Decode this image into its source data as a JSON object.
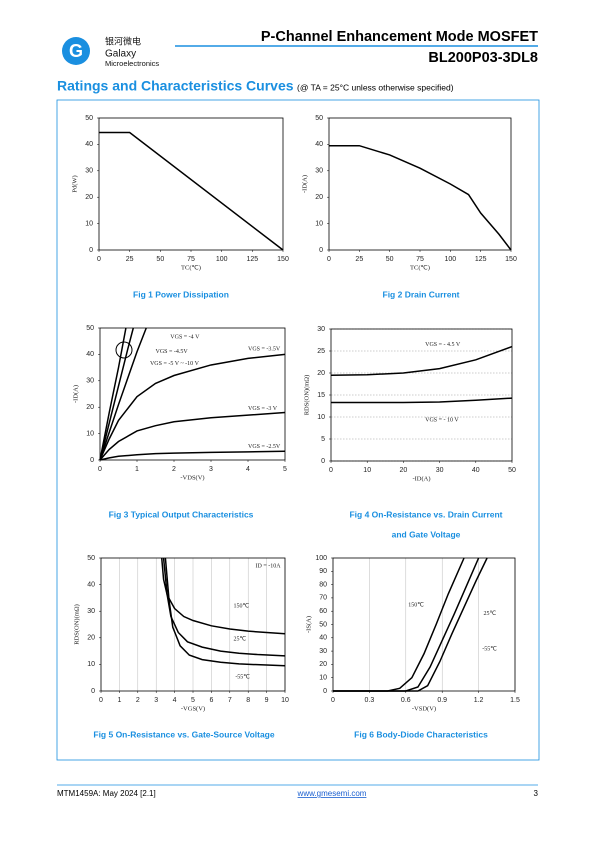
{
  "header": {
    "logo_cn": "银河微电",
    "logo_name": "Galaxy",
    "logo_sub": "Microelectronics",
    "title": "P-Channel Enhancement Mode MOSFET",
    "part_number": "BL200P03-3DL8"
  },
  "section": {
    "title": "Ratings and Characteristics Curves",
    "condition": "(@ TA = 25°C unless otherwise specified)"
  },
  "footer": {
    "document": "MTM1459A: May 2024 [2.1]",
    "website": "www.gmesemi.com",
    "page": "3"
  },
  "chart_data": [
    {
      "type": "line",
      "caption": "Fig 1    Power Dissipation",
      "x_label": "TC(℃)",
      "y_label": "Pd(W)",
      "color": "#000000",
      "xlim": [
        0,
        150
      ],
      "xticks": [
        0,
        25,
        50,
        75,
        100,
        125,
        150
      ],
      "ylim": [
        0,
        50
      ],
      "yticks": [
        0,
        10,
        20,
        30,
        40,
        50
      ],
      "grid": "none",
      "series": [
        {
          "x": [
            0,
            25,
            150
          ],
          "values": [
            44.5,
            44.5,
            0
          ]
        }
      ]
    },
    {
      "type": "line",
      "caption": "Fig 2    Drain Current",
      "x_label": "TC(℃)",
      "y_label": "-ID(A)",
      "color": "#000000",
      "xlim": [
        0,
        150
      ],
      "xticks": [
        0,
        25,
        50,
        75,
        100,
        125,
        150
      ],
      "ylim": [
        0,
        50
      ],
      "yticks": [
        0,
        10,
        20,
        30,
        40,
        50
      ],
      "grid": "none",
      "series": [
        {
          "x": [
            0,
            25,
            50,
            75,
            100,
            115,
            125,
            140,
            150
          ],
          "values": [
            39.5,
            39.5,
            36,
            31,
            25,
            21,
            14,
            6,
            0
          ]
        }
      ]
    },
    {
      "type": "line",
      "caption": "Fig 3    Typical Output Characteristics",
      "x_label": "-VDS(V)",
      "y_label": "-ID(A)",
      "color": "#000000",
      "xlim": [
        0,
        5
      ],
      "xticks": [
        0,
        1,
        2,
        3,
        4,
        5
      ],
      "ylim": [
        0,
        50
      ],
      "yticks": [
        0,
        10,
        20,
        30,
        40,
        50
      ],
      "grid": "none",
      "series": [
        {
          "name": "VGS = -5 V ~ -10 V",
          "x": [
            0,
            0.25,
            0.5,
            0.7
          ],
          "values": [
            0,
            18,
            35,
            50
          ]
        },
        {
          "name": "VGS = -4.5V",
          "x": [
            0,
            0.25,
            0.5,
            0.75,
            0.9
          ],
          "values": [
            0,
            14,
            28,
            42,
            50
          ]
        },
        {
          "name": "VGS = -4 V",
          "x": [
            0,
            0.25,
            0.5,
            0.75,
            1,
            1.25
          ],
          "values": [
            0,
            10.5,
            21,
            31,
            41,
            50
          ]
        },
        {
          "name": "VGS = -3.5V",
          "x": [
            0,
            0.25,
            0.5,
            1,
            1.5,
            2,
            3,
            4,
            5
          ],
          "values": [
            0,
            8,
            15,
            24,
            29,
            32,
            36,
            38.5,
            40
          ]
        },
        {
          "name": "VGS = -3 V",
          "x": [
            0,
            0.25,
            0.5,
            1,
            1.5,
            2,
            3,
            4,
            5
          ],
          "values": [
            0,
            4,
            7,
            11,
            13,
            14.5,
            16,
            17,
            18
          ]
        },
        {
          "name": "VGS = -2.5V",
          "x": [
            0,
            0.25,
            0.5,
            1,
            1.5,
            2,
            3,
            4,
            5
          ],
          "values": [
            0,
            0.8,
            1.4,
            2,
            2.4,
            2.6,
            2.9,
            3.1,
            3.3
          ]
        }
      ]
    },
    {
      "type": "line",
      "caption": "Fig 4    On-Resistance vs. Drain Current",
      "caption_line2": "and Gate Voltage",
      "x_label": "-ID(A)",
      "y_label": "RDS(ON)(mΩ)",
      "color": "#000000",
      "xlim": [
        0,
        50
      ],
      "xticks": [
        0,
        10,
        20,
        30,
        40,
        50
      ],
      "ylim": [
        0,
        30
      ],
      "yticks": [
        0,
        5,
        10,
        15,
        20,
        25,
        30
      ],
      "grid": "y",
      "series": [
        {
          "name": "VGS = - 4.5 V",
          "x": [
            0,
            10,
            20,
            30,
            40,
            50
          ],
          "values": [
            19.5,
            19.6,
            20,
            21,
            23,
            26
          ]
        },
        {
          "name": "VGS = - 10 V",
          "x": [
            0,
            10,
            20,
            30,
            40,
            50
          ],
          "values": [
            13.3,
            13.3,
            13.3,
            13.4,
            13.8,
            14.3
          ]
        }
      ]
    },
    {
      "type": "line",
      "caption": "Fig 5    On-Resistance vs. Gate-Source Voltage",
      "x_label": "-VGS(V)",
      "y_label": "RDS(ON)(mΩ)",
      "color": "#000000",
      "annotation": "ID = -10A",
      "xlim": [
        0,
        10
      ],
      "xticks": [
        0,
        1,
        2,
        3,
        4,
        5,
        6,
        7,
        8,
        9,
        10
      ],
      "ylim": [
        0,
        50
      ],
      "yticks": [
        0,
        10,
        20,
        30,
        40,
        50
      ],
      "grid": "x",
      "series": [
        {
          "name": "150℃",
          "x": [
            3.3,
            3.4,
            3.6,
            4,
            4.5,
            5,
            6,
            7,
            8,
            9,
            10
          ],
          "values": [
            50,
            42,
            36,
            31,
            28,
            26.5,
            24.5,
            23.3,
            22.5,
            22,
            21.5
          ]
        },
        {
          "name": "25℃",
          "x": [
            3.4,
            3.6,
            3.8,
            4.2,
            4.7,
            5.5,
            6.5,
            7.5,
            8.5,
            10
          ],
          "values": [
            50,
            36,
            28,
            22,
            18.5,
            16.5,
            15,
            14.2,
            13.7,
            13.2
          ]
        },
        {
          "name": "-55℃",
          "x": [
            3.5,
            3.7,
            3.9,
            4.3,
            4.8,
            5.5,
            6.5,
            7.5,
            8.5,
            10
          ],
          "values": [
            50,
            34,
            24,
            17,
            13.5,
            11.8,
            10.8,
            10.2,
            9.9,
            9.5
          ]
        }
      ]
    },
    {
      "type": "line",
      "caption": "Fig 6    Body-Diode Characteristics",
      "x_label": "-VSD(V)",
      "y_label": "-IS(A)",
      "color": "#000000",
      "xlim": [
        0,
        1.5
      ],
      "xticks": [
        0,
        0.3,
        0.6,
        0.9,
        1.2,
        1.5
      ],
      "ylim": [
        0,
        100
      ],
      "yticks": [
        0,
        10,
        20,
        30,
        40,
        50,
        60,
        70,
        80,
        90,
        100
      ],
      "grid": "x",
      "series": [
        {
          "name": "150℃",
          "x": [
            0,
            0.45,
            0.55,
            0.65,
            0.75,
            0.85,
            0.95,
            1.08
          ],
          "values": [
            0,
            0,
            2,
            10,
            28,
            50,
            73,
            100
          ]
        },
        {
          "name": "25℃",
          "x": [
            0,
            0.6,
            0.7,
            0.8,
            0.9,
            1.0,
            1.1,
            1.2
          ],
          "values": [
            0,
            0,
            3,
            18,
            38,
            58,
            79,
            100
          ]
        },
        {
          "name": "-55℃",
          "x": [
            0,
            0.7,
            0.78,
            0.88,
            0.98,
            1.08,
            1.18,
            1.27
          ],
          "values": [
            0,
            0,
            4,
            22,
            43,
            63,
            83,
            100
          ]
        }
      ]
    }
  ]
}
